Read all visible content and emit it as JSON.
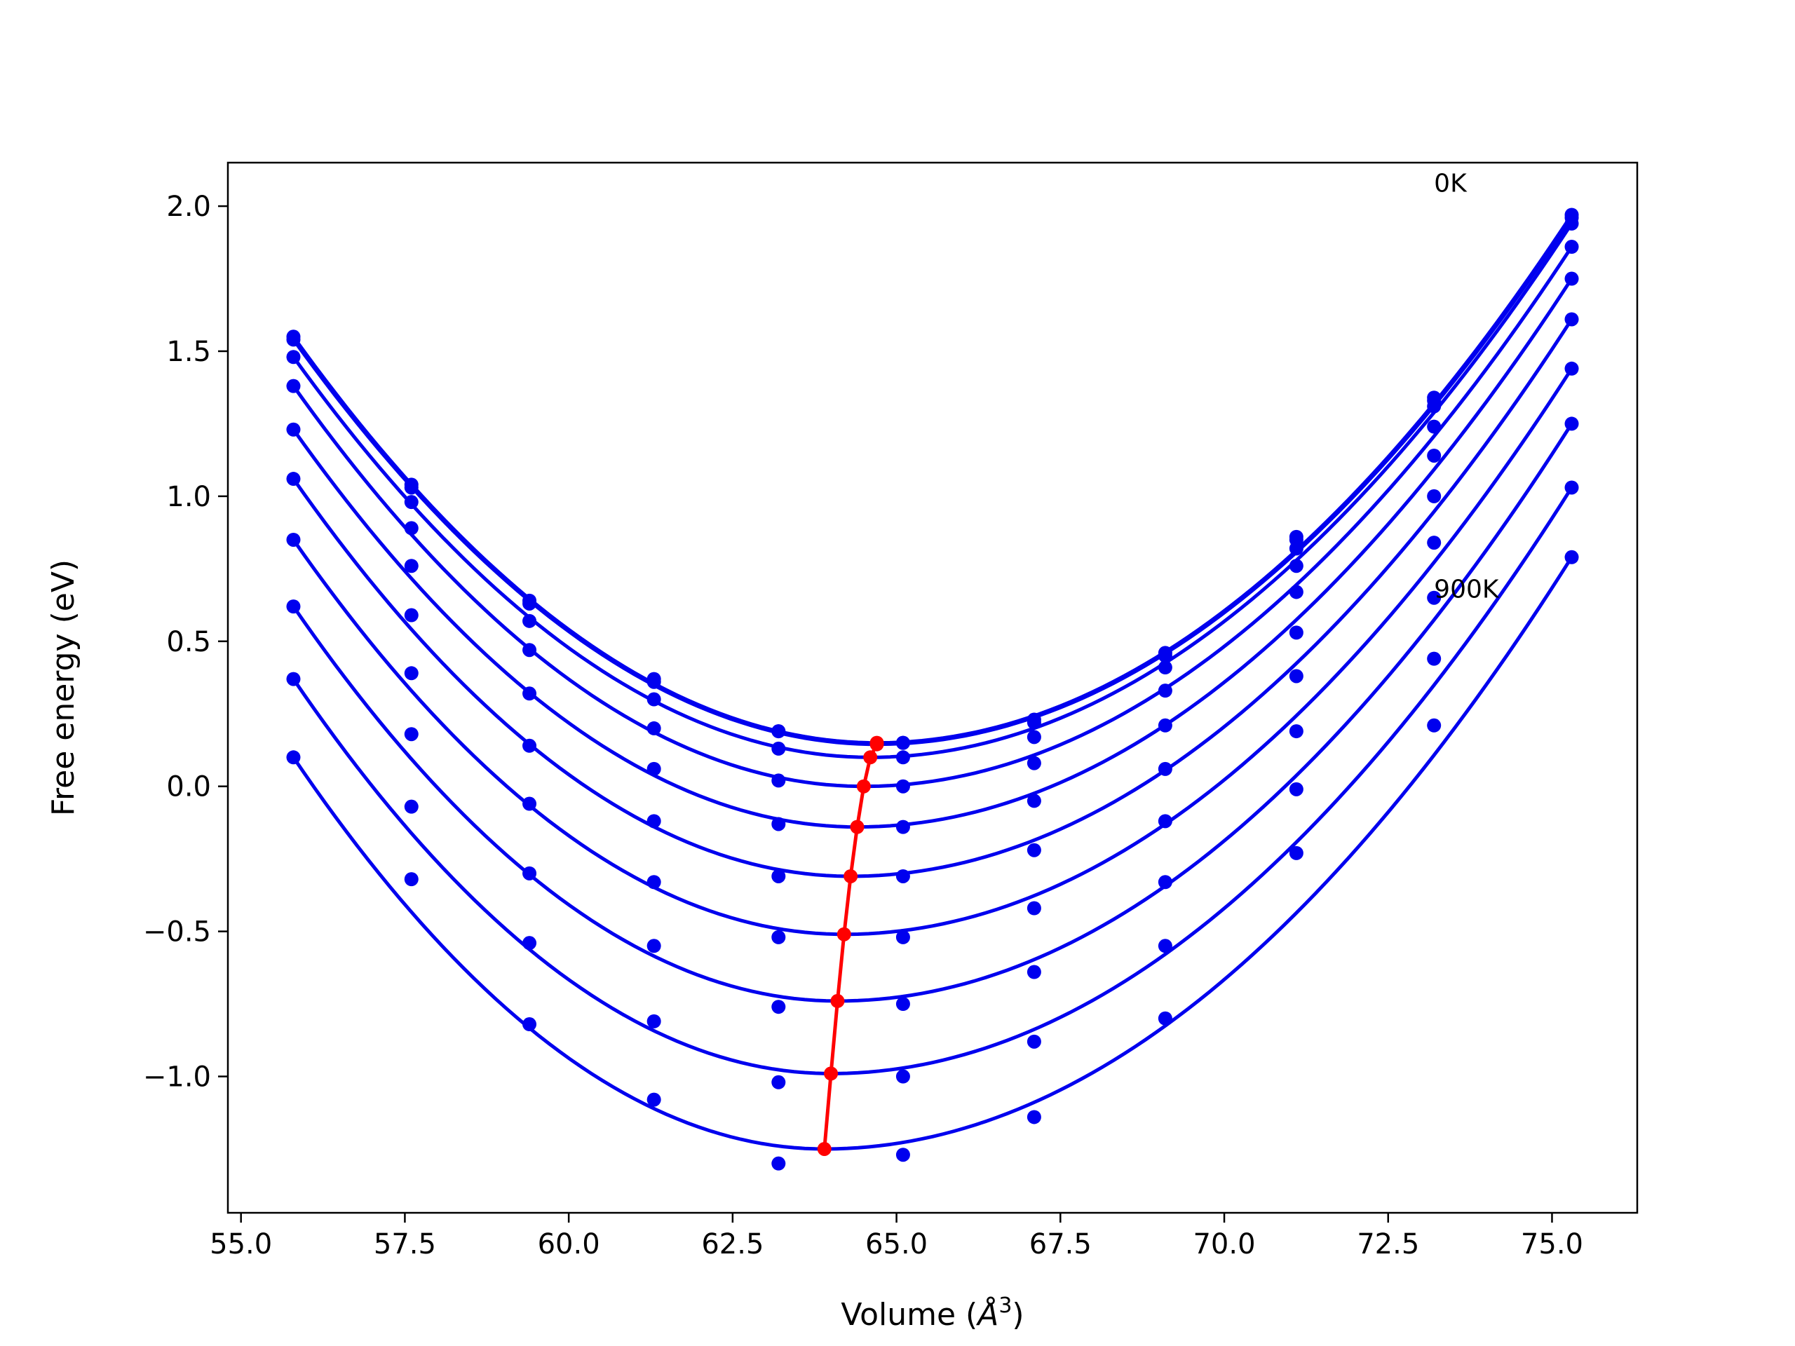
{
  "chart_data": {
    "type": "line",
    "title": "",
    "xlabel_text": "Volume (",
    "xlabel_unit": "Å",
    "xlabel_sup": "3",
    "xlabel_close": ")",
    "ylabel": "Free energy (eV)",
    "xlim": [
      54.8,
      76.3
    ],
    "ylim": [
      -1.47,
      2.15
    ],
    "xticks": [
      55.0,
      57.5,
      60.0,
      62.5,
      65.0,
      67.5,
      70.0,
      72.5,
      75.0
    ],
    "xtick_labels": [
      "55.0",
      "57.5",
      "60.0",
      "62.5",
      "65.0",
      "67.5",
      "70.0",
      "72.5",
      "75.0"
    ],
    "yticks": [
      -1.0,
      -0.5,
      0.0,
      0.5,
      1.0,
      1.5,
      2.0
    ],
    "ytick_labels": [
      "−1.0",
      "−0.5",
      "0.0",
      "0.5",
      "1.0",
      "1.5",
      "2.0"
    ],
    "grid": false,
    "colors": {
      "fit": "#0000ee",
      "points": "#0000ee",
      "minima": "#ff0000"
    },
    "volumes": [
      55.8,
      57.6,
      59.4,
      61.3,
      63.2,
      65.1,
      67.1,
      69.1,
      71.1,
      73.2,
      75.3
    ],
    "fit_x_range": [
      55.8,
      75.3
    ],
    "annotations": [
      {
        "text": "0K",
        "x": 73.2,
        "y": 2.05
      },
      {
        "text": "900K",
        "x": 73.2,
        "y": 0.65
      }
    ],
    "series": [
      {
        "points": [
          1.55,
          1.04,
          0.64,
          0.37,
          0.19,
          0.15,
          0.23,
          0.46,
          0.86,
          1.34,
          1.97
        ],
        "min_v": 64.7,
        "min_e": 0.15
      },
      {
        "points": [
          1.54,
          1.03,
          0.63,
          0.36,
          0.19,
          0.15,
          0.22,
          0.45,
          0.85,
          1.33,
          1.96
        ],
        "min_v": 64.7,
        "min_e": 0.145
      },
      {
        "points": [
          1.48,
          0.98,
          0.57,
          0.3,
          0.13,
          0.1,
          0.17,
          0.41,
          0.82,
          1.31,
          1.94
        ],
        "min_v": 64.6,
        "min_e": 0.1
      },
      {
        "points": [
          1.38,
          0.89,
          0.47,
          0.2,
          0.02,
          0.0,
          0.08,
          0.33,
          0.76,
          1.24,
          1.86
        ],
        "min_v": 64.5,
        "min_e": 0.0
      },
      {
        "points": [
          1.23,
          0.76,
          0.32,
          0.06,
          -0.13,
          -0.14,
          -0.05,
          0.21,
          0.67,
          1.14,
          1.75
        ],
        "min_v": 64.4,
        "min_e": -0.14
      },
      {
        "points": [
          1.06,
          0.59,
          0.14,
          -0.12,
          -0.31,
          -0.31,
          -0.22,
          0.06,
          0.53,
          1.0,
          1.61
        ],
        "min_v": 64.3,
        "min_e": -0.31
      },
      {
        "points": [
          0.85,
          0.39,
          -0.06,
          -0.33,
          -0.52,
          -0.52,
          -0.42,
          -0.12,
          0.38,
          0.84,
          1.44
        ],
        "min_v": 64.2,
        "min_e": -0.51
      },
      {
        "points": [
          0.62,
          0.18,
          -0.3,
          -0.55,
          -0.76,
          -0.75,
          -0.64,
          -0.33,
          0.19,
          0.65,
          1.25
        ],
        "min_v": 64.1,
        "min_e": -0.74
      },
      {
        "points": [
          0.37,
          -0.07,
          -0.54,
          -0.81,
          -1.02,
          -1.0,
          -0.88,
          -0.55,
          -0.01,
          0.44,
          1.03
        ],
        "min_v": 64.0,
        "min_e": -0.99
      },
      {
        "points": [
          0.1,
          -0.32,
          -0.82,
          -1.08,
          -1.3,
          -1.27,
          -1.14,
          -0.8,
          -0.23,
          0.21,
          0.79
        ],
        "min_v": 63.9,
        "min_e": -1.25
      }
    ]
  }
}
